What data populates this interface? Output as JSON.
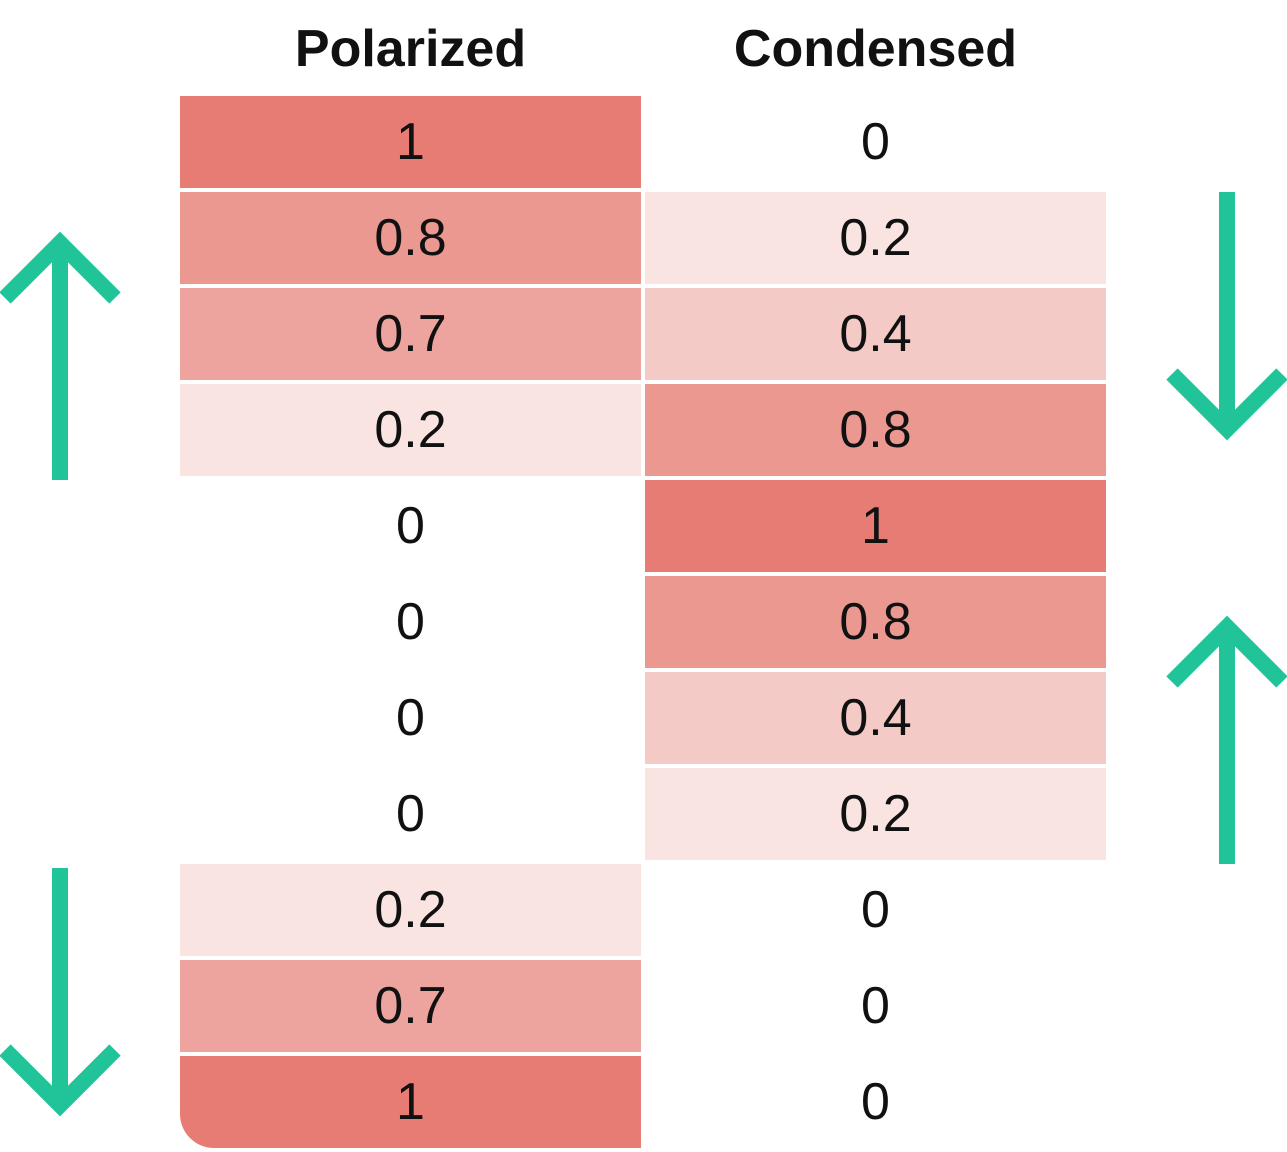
{
  "colors": {
    "level_1": "#e77c74",
    "level_0_8": "#eb9890",
    "level_0_7": "#eea49e",
    "level_0_4": "#f4cac6",
    "level_0_2": "#fae4e2",
    "level_0": "#ffffff",
    "arrow": "#20c498",
    "text": "#111111"
  },
  "columns": [
    {
      "header": "Polarized",
      "cells": [
        {
          "label": "1",
          "value": 1
        },
        {
          "label": "0.8",
          "value": 0.8
        },
        {
          "label": "0.7",
          "value": 0.7
        },
        {
          "label": "0.2",
          "value": 0.2
        },
        {
          "label": "0",
          "value": 0
        },
        {
          "label": "0",
          "value": 0
        },
        {
          "label": "0",
          "value": 0
        },
        {
          "label": "0",
          "value": 0
        },
        {
          "label": "0.2",
          "value": 0.2
        },
        {
          "label": "0.7",
          "value": 0.7
        },
        {
          "label": "1",
          "value": 1
        }
      ]
    },
    {
      "header": "Condensed",
      "cells": [
        {
          "label": "0",
          "value": 0
        },
        {
          "label": "0.2",
          "value": 0.2
        },
        {
          "label": "0.4",
          "value": 0.4
        },
        {
          "label": "0.8",
          "value": 0.8
        },
        {
          "label": "1",
          "value": 1
        },
        {
          "label": "0.8",
          "value": 0.8
        },
        {
          "label": "0.4",
          "value": 0.4
        },
        {
          "label": "0.2",
          "value": 0.2
        },
        {
          "label": "0",
          "value": 0
        },
        {
          "label": "0",
          "value": 0
        },
        {
          "label": "0",
          "value": 0
        }
      ]
    }
  ],
  "arrows": [
    {
      "name": "up-arrow-icon",
      "direction": "up"
    },
    {
      "name": "down-arrow-icon",
      "direction": "down"
    },
    {
      "name": "down-arrow-icon",
      "direction": "down"
    },
    {
      "name": "up-arrow-icon",
      "direction": "up"
    }
  ]
}
